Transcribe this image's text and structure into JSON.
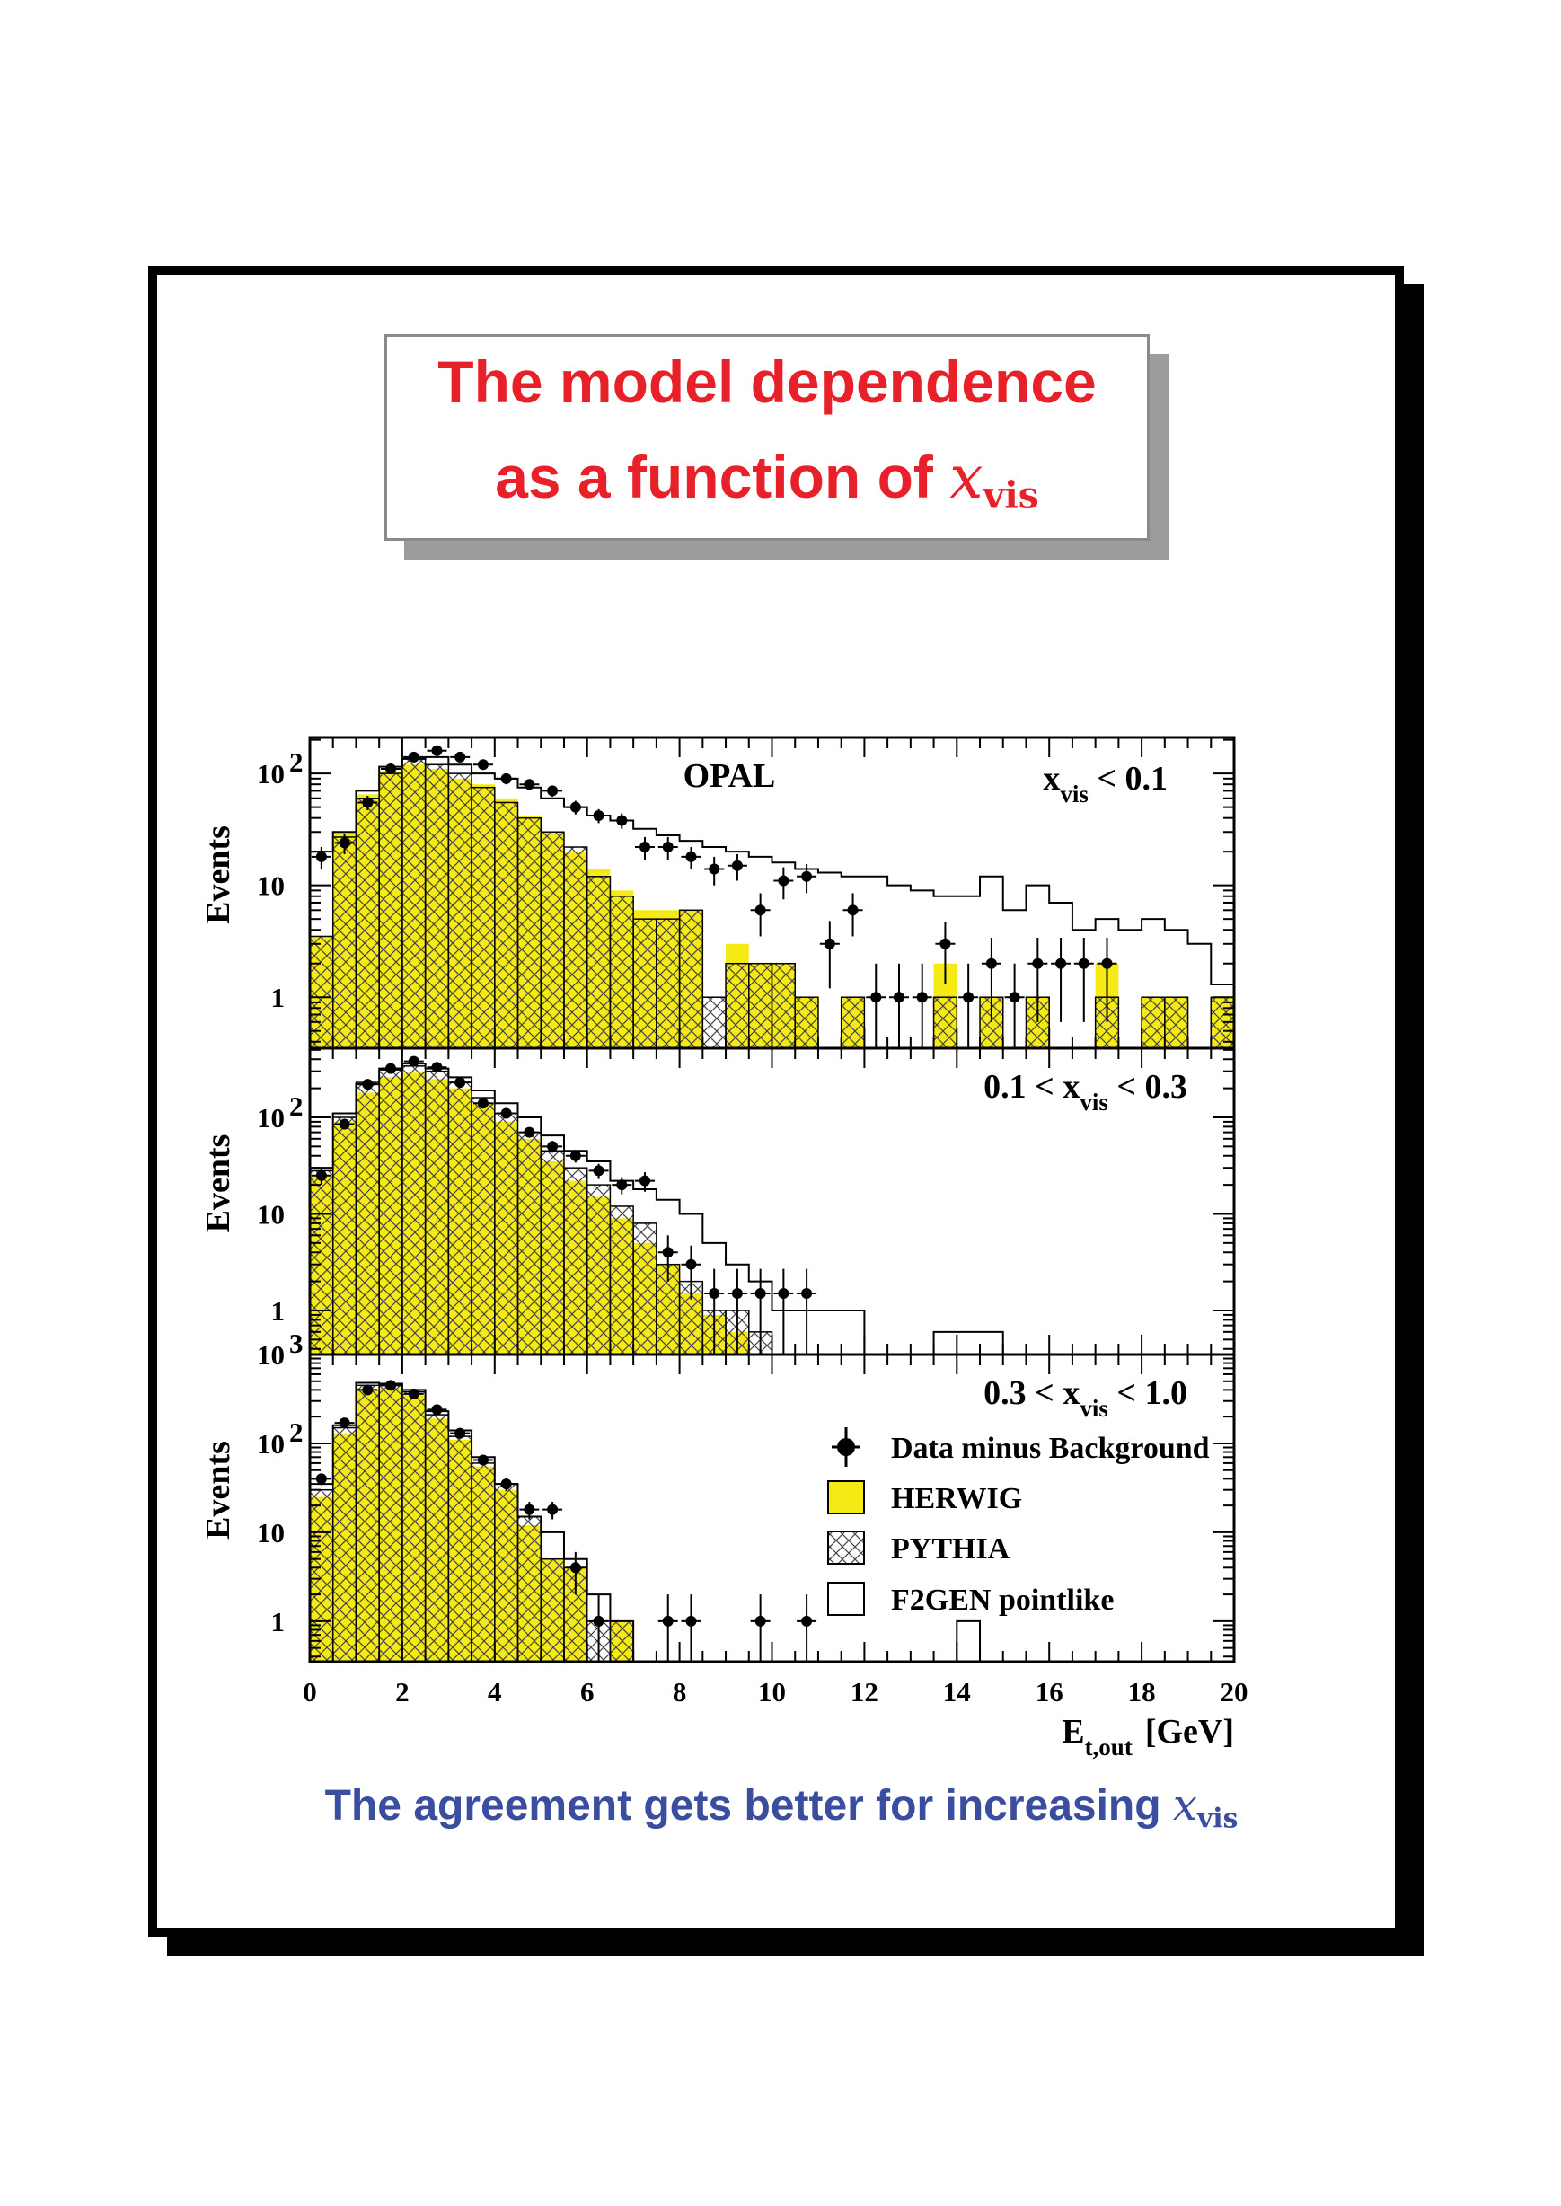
{
  "title": {
    "line1": "The model dependence",
    "line2_prefix": "as a function of ",
    "line2_var": "x",
    "line2_sub": "vis"
  },
  "caption": {
    "prefix": "The agreement gets better for increasing ",
    "var": "x",
    "sub": "vis"
  },
  "colors": {
    "title": "#e8202a",
    "caption": "#3a4d9e",
    "herwig": "#f5ea14",
    "frame": "#000000"
  },
  "chart_data": {
    "type": "histogram",
    "experiment": "OPAL",
    "x_axis": {
      "label": "E",
      "label_sub": "t,out",
      "unit": "[GeV]",
      "range": [
        0,
        20
      ],
      "ticks": [
        "0",
        "2",
        "4",
        "6",
        "8",
        "10",
        "12",
        "14",
        "16",
        "18",
        "20"
      ]
    },
    "y_axis": {
      "label": "Events",
      "scale": "log"
    },
    "legend": {
      "placement": "lower-panel-right",
      "entries": [
        {
          "key": "data",
          "label": "Data minus Background"
        },
        {
          "key": "herwig",
          "label": "HERWIG"
        },
        {
          "key": "pythia",
          "label": "PYTHIA"
        },
        {
          "key": "f2gen",
          "label": "F2GEN pointlike"
        }
      ]
    },
    "panels": [
      {
        "label": {
          "pre": "x",
          "sub": "vis",
          "post": " < 0.1"
        },
        "ylim": [
          0.35,
          210
        ],
        "y_tick_labels": [
          {
            "v": 1,
            "t": "1",
            "sup": ""
          },
          {
            "v": 10,
            "t": "10",
            "sup": ""
          },
          {
            "v": 100,
            "t": "10",
            "sup": "2"
          }
        ],
        "herwig": [
          3.5,
          30,
          65,
          105,
          120,
          110,
          90,
          80,
          60,
          42,
          30,
          20,
          14,
          9,
          6,
          6,
          6,
          0.3,
          3,
          2,
          2,
          1,
          0.3,
          1,
          0.3,
          0.3,
          0.3,
          2,
          0.3,
          1,
          0.3,
          1,
          0.3,
          0.3,
          2,
          0.3,
          1,
          1,
          0.3,
          1
        ],
        "pythia": [
          3.5,
          27,
          60,
          100,
          140,
          120,
          100,
          75,
          55,
          40,
          30,
          22,
          12,
          8,
          5,
          5,
          6,
          1,
          2,
          2,
          2,
          1,
          0.3,
          1,
          0.3,
          0.3,
          0.3,
          1,
          0.3,
          1,
          0.3,
          1,
          0.3,
          0.3,
          1,
          0.3,
          1,
          1,
          0.3,
          1
        ],
        "f2gen": [
          20,
          30,
          70,
          115,
          135,
          140,
          120,
          100,
          90,
          75,
          60,
          50,
          42,
          38,
          32,
          28,
          25,
          22,
          20,
          18,
          16,
          14,
          13,
          12,
          12,
          10,
          9,
          8,
          8,
          12,
          6,
          10,
          7,
          4,
          5,
          4,
          5,
          4,
          3,
          1.3
        ],
        "data_x": [
          0.25,
          0.75,
          1.25,
          1.75,
          2.25,
          2.75,
          3.25,
          3.75,
          4.25,
          4.75,
          5.25,
          5.75,
          6.25,
          6.75,
          7.25,
          7.75,
          8.25,
          8.75,
          9.25,
          9.75,
          10.25,
          10.75,
          11.25,
          11.75,
          12.25,
          12.75,
          13.25,
          13.75,
          14.25,
          14.75,
          15.25,
          15.75,
          16.25,
          16.75,
          17.25
        ],
        "data_y": [
          18,
          24,
          55,
          110,
          140,
          160,
          140,
          120,
          90,
          80,
          70,
          50,
          42,
          38,
          22,
          22,
          18,
          14,
          15,
          6,
          11,
          12,
          3,
          6,
          1,
          1,
          1,
          3,
          1,
          2,
          1,
          2,
          2,
          2,
          2
        ],
        "data_err": [
          4,
          5,
          8,
          11,
          12,
          13,
          12,
          11,
          10,
          9,
          8,
          7,
          6,
          6,
          5,
          5,
          4,
          4,
          4,
          2.5,
          3.5,
          3.5,
          1.8,
          2.5,
          1,
          1,
          1,
          1.7,
          1,
          1.4,
          1,
          1.4,
          1.4,
          1.4,
          1.4
        ]
      },
      {
        "label": {
          "pre": "0.1 < x",
          "sub": "vis",
          "post": " < 0.3"
        },
        "ylim": [
          0.35,
          520
        ],
        "y_tick_labels": [
          {
            "v": 1,
            "t": "1",
            "sup": ""
          },
          {
            "v": 10,
            "t": "10",
            "sup": ""
          },
          {
            "v": 100,
            "t": "10",
            "sup": "2"
          }
        ],
        "herwig": [
          25,
          90,
          180,
          260,
          290,
          250,
          200,
          140,
          90,
          60,
          35,
          22,
          15,
          9,
          5,
          3,
          1.5,
          0.9,
          0.6,
          0.3,
          0.3
        ],
        "pythia": [
          28,
          100,
          230,
          310,
          340,
          300,
          230,
          160,
          110,
          70,
          45,
          30,
          20,
          12,
          8,
          3,
          2,
          1,
          1,
          0.6,
          0.3
        ],
        "f2gen": [
          30,
          110,
          220,
          320,
          360,
          320,
          260,
          190,
          140,
          100,
          65,
          45,
          35,
          22,
          18,
          14,
          10,
          5,
          3,
          2,
          1,
          1,
          1,
          1,
          0.3,
          0.3,
          0.3,
          0.6,
          0.6,
          0.6
        ],
        "data_x": [
          0.25,
          0.75,
          1.25,
          1.75,
          2.25,
          2.75,
          3.25,
          3.75,
          4.25,
          4.75,
          5.25,
          5.75,
          6.25,
          6.75,
          7.25,
          7.75,
          8.25,
          8.75,
          9.25,
          9.75,
          10.25,
          10.75
        ],
        "data_y": [
          25,
          85,
          220,
          320,
          380,
          330,
          230,
          140,
          110,
          70,
          50,
          40,
          28,
          20,
          22,
          4,
          3,
          1.5,
          1.5,
          1.5,
          1.5,
          1.5
        ],
        "data_err": [
          5,
          9,
          15,
          18,
          19,
          18,
          15,
          12,
          10,
          8,
          7,
          6,
          5,
          4,
          5,
          2,
          1.7,
          1.2,
          1.2,
          1.2,
          1.2,
          1.2
        ]
      },
      {
        "label": {
          "pre": "0.3 < x",
          "sub": "vis",
          "post": " < 1.0"
        },
        "ylim": [
          0.35,
          1000
        ],
        "y_tick_labels": [
          {
            "v": 1,
            "t": "1",
            "sup": ""
          },
          {
            "v": 10,
            "t": "10",
            "sup": ""
          },
          {
            "v": 100,
            "t": "10",
            "sup": "2"
          },
          {
            "v": 1000,
            "t": "10",
            "sup": "3"
          }
        ],
        "herwig": [
          25,
          130,
          400,
          420,
          350,
          190,
          110,
          55,
          30,
          12,
          5,
          4,
          0.3,
          1
        ],
        "pythia": [
          30,
          150,
          450,
          450,
          380,
          210,
          120,
          60,
          35,
          15,
          5,
          4,
          1,
          1
        ],
        "f2gen": [
          35,
          160,
          480,
          470,
          400,
          230,
          140,
          70,
          35,
          15,
          10,
          5,
          2,
          1,
          0.3,
          0.3,
          0.3,
          0.3,
          0.3,
          0.3,
          0.3,
          0.3,
          0.3,
          0.3,
          0.3,
          0.3,
          0.3,
          0.3,
          1,
          0.3
        ],
        "data_x": [
          0.25,
          0.75,
          1.25,
          1.75,
          2.25,
          2.75,
          3.25,
          3.75,
          4.25,
          4.75,
          5.25,
          5.75,
          6.25,
          7.75,
          8.25,
          9.75,
          10.75
        ],
        "data_y": [
          40,
          170,
          400,
          450,
          360,
          240,
          130,
          65,
          35,
          18,
          18,
          4,
          1,
          1,
          1,
          1,
          1
        ],
        "data_err": [
          6,
          13,
          20,
          21,
          19,
          15,
          11,
          8,
          6,
          4,
          4,
          2,
          1,
          1,
          1,
          1,
          1
        ]
      }
    ]
  }
}
